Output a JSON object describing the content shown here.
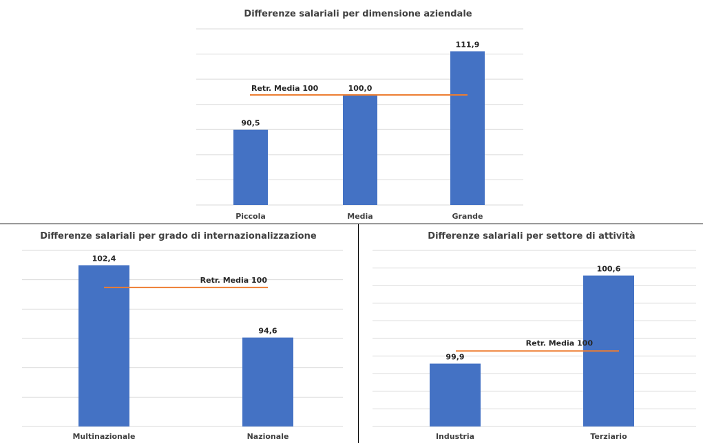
{
  "colors": {
    "bar": "#4472c4",
    "reference_line": "#ed7d31",
    "grid": "#d9d9d9",
    "divider": "#000000"
  },
  "chart_data": [
    {
      "type": "bar",
      "title": "Differenze salariali per dimensione aziendale",
      "categories": [
        "Piccola",
        "Media",
        "Grande"
      ],
      "values": [
        90.5,
        100.0,
        111.9
      ],
      "value_labels": [
        "90,5",
        "100,0",
        "111,9"
      ],
      "ylim": [
        70,
        118
      ],
      "grid": true,
      "reference_line": {
        "value": 100,
        "label": "Retr. Media 100"
      }
    },
    {
      "type": "bar",
      "title": "Differenze salariali per grado di internazionalizzazione",
      "categories": [
        "Multinazionale",
        "Nazionale"
      ],
      "values": [
        102.4,
        94.6
      ],
      "value_labels": [
        "102,4",
        "94,6"
      ],
      "ylim": [
        85,
        104
      ],
      "grid": true,
      "reference_line": {
        "value": 100,
        "label": "Retr. Media 100"
      }
    },
    {
      "type": "bar",
      "title": "Differenze salariali per settore di attività",
      "categories": [
        "Industria",
        "Terziario"
      ],
      "values": [
        99.9,
        100.6
      ],
      "value_labels": [
        "99,9",
        "100,6"
      ],
      "ylim": [
        99.4,
        100.8
      ],
      "grid": true,
      "reference_line": {
        "value": 100,
        "label": "Retr. Media 100"
      }
    }
  ]
}
